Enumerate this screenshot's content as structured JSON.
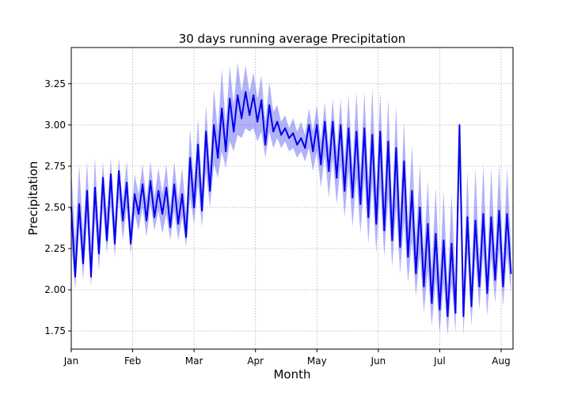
{
  "chart_data": {
    "type": "line",
    "title": "30 days running average Precipitation",
    "xlabel": "Month",
    "ylabel": "Precipitation",
    "xlim": [
      0,
      223
    ],
    "ylim": [
      1.64,
      3.47
    ],
    "grid": true,
    "grid_style": "dotted",
    "x_ticks": [
      {
        "label": "Jan",
        "day": 0
      },
      {
        "label": "Feb",
        "day": 31
      },
      {
        "label": "Mar",
        "day": 62
      },
      {
        "label": "Apr",
        "day": 93
      },
      {
        "label": "May",
        "day": 124
      },
      {
        "label": "Jun",
        "day": 155
      },
      {
        "label": "Jul",
        "day": 186
      },
      {
        "label": "Aug",
        "day": 217
      }
    ],
    "y_ticks": [
      {
        "label": "1.75",
        "value": 1.75
      },
      {
        "label": "2.00",
        "value": 2.0
      },
      {
        "label": "2.25",
        "value": 2.25
      },
      {
        "label": "2.50",
        "value": 2.5
      },
      {
        "label": "2.75",
        "value": 2.75
      },
      {
        "label": "3.00",
        "value": 3.0
      },
      {
        "label": "3.25",
        "value": 3.25
      }
    ],
    "colors": {
      "line": "#0000ee",
      "band": "#0000ee"
    },
    "band_opacity": 0.3,
    "series": [
      {
        "x": [
          0,
          2,
          4,
          6,
          8,
          10,
          12,
          14,
          16,
          18,
          20,
          22,
          24,
          26,
          28,
          30,
          32,
          34,
          36,
          38,
          40,
          42,
          44,
          46,
          48,
          50,
          52,
          54,
          56,
          58,
          60,
          62,
          64,
          66,
          68,
          70,
          72,
          74,
          76,
          78,
          80,
          82,
          84,
          86,
          88,
          90,
          92,
          94,
          96,
          98,
          100,
          102,
          104,
          106,
          108,
          110,
          112,
          114,
          116,
          118,
          120,
          122,
          124,
          126,
          128,
          130,
          132,
          134,
          136,
          138,
          140,
          142,
          144,
          146,
          148,
          150,
          152,
          154,
          156,
          158,
          160,
          162,
          164,
          166,
          168,
          170,
          172,
          174,
          176,
          178,
          180,
          182,
          184,
          186,
          188,
          190,
          192,
          194,
          196,
          198,
          200,
          202,
          204,
          206,
          208,
          210,
          212,
          214,
          216,
          218,
          220,
          222
        ],
        "y": [
          2.5,
          2.08,
          2.52,
          2.16,
          2.6,
          2.08,
          2.62,
          2.22,
          2.68,
          2.3,
          2.7,
          2.28,
          2.72,
          2.42,
          2.65,
          2.28,
          2.58,
          2.46,
          2.64,
          2.42,
          2.66,
          2.44,
          2.6,
          2.46,
          2.62,
          2.38,
          2.64,
          2.4,
          2.58,
          2.32,
          2.8,
          2.5,
          2.88,
          2.48,
          2.96,
          2.6,
          3.0,
          2.8,
          3.1,
          2.84,
          3.16,
          2.96,
          3.18,
          3.04,
          3.2,
          3.06,
          3.18,
          3.02,
          3.15,
          2.88,
          3.12,
          2.96,
          3.02,
          2.94,
          2.98,
          2.92,
          2.95,
          2.88,
          2.92,
          2.86,
          3.0,
          2.84,
          3.0,
          2.76,
          3.02,
          2.72,
          3.02,
          2.68,
          3.0,
          2.6,
          2.98,
          2.56,
          2.96,
          2.52,
          2.98,
          2.44,
          2.94,
          2.4,
          2.96,
          2.36,
          2.9,
          2.3,
          2.86,
          2.26,
          2.78,
          2.2,
          2.6,
          2.1,
          2.5,
          2.02,
          2.4,
          1.92,
          2.34,
          1.88,
          2.3,
          1.84,
          2.28,
          1.86,
          3.0,
          1.84,
          2.44,
          1.9,
          2.42,
          2.02,
          2.46,
          1.98,
          2.44,
          2.06,
          2.48,
          2.02,
          2.46,
          2.1
        ],
        "y_lower": [
          2.3,
          2.0,
          2.38,
          2.06,
          2.42,
          2.02,
          2.44,
          2.12,
          2.5,
          2.22,
          2.52,
          2.2,
          2.56,
          2.3,
          2.5,
          2.22,
          2.46,
          2.36,
          2.5,
          2.32,
          2.52,
          2.36,
          2.48,
          2.34,
          2.46,
          2.3,
          2.48,
          2.3,
          2.44,
          2.26,
          2.56,
          2.4,
          2.64,
          2.38,
          2.72,
          2.5,
          2.76,
          2.68,
          2.84,
          2.74,
          2.9,
          2.84,
          2.94,
          2.92,
          2.98,
          2.96,
          2.98,
          2.9,
          2.96,
          2.8,
          2.96,
          2.86,
          2.92,
          2.86,
          2.9,
          2.84,
          2.86,
          2.8,
          2.84,
          2.78,
          2.86,
          2.72,
          2.84,
          2.62,
          2.82,
          2.56,
          2.8,
          2.52,
          2.76,
          2.44,
          2.72,
          2.38,
          2.68,
          2.34,
          2.68,
          2.28,
          2.64,
          2.22,
          2.62,
          2.2,
          2.56,
          2.14,
          2.5,
          2.1,
          2.42,
          2.04,
          2.3,
          1.96,
          2.22,
          1.86,
          2.12,
          1.78,
          2.06,
          1.74,
          2.04,
          1.72,
          2.04,
          1.74,
          2.7,
          1.72,
          2.22,
          1.78,
          2.2,
          1.88,
          2.22,
          1.84,
          2.2,
          1.92,
          2.24,
          1.9,
          2.22,
          1.98
        ],
        "y_upper": [
          2.74,
          2.3,
          2.76,
          2.34,
          2.78,
          2.28,
          2.8,
          2.36,
          2.78,
          2.46,
          2.8,
          2.42,
          2.8,
          2.54,
          2.78,
          2.4,
          2.7,
          2.58,
          2.76,
          2.54,
          2.78,
          2.56,
          2.74,
          2.58,
          2.76,
          2.5,
          2.78,
          2.54,
          2.74,
          2.46,
          2.98,
          2.64,
          3.04,
          2.62,
          3.12,
          2.74,
          3.22,
          2.96,
          3.34,
          3.0,
          3.36,
          3.12,
          3.38,
          3.2,
          3.36,
          3.2,
          3.32,
          3.16,
          3.3,
          3.02,
          3.26,
          3.08,
          3.12,
          3.02,
          3.06,
          2.98,
          3.04,
          2.96,
          3.02,
          2.94,
          3.1,
          2.96,
          3.12,
          2.9,
          3.14,
          2.86,
          3.16,
          2.84,
          3.16,
          2.78,
          3.18,
          2.74,
          3.2,
          2.72,
          3.2,
          2.66,
          3.22,
          2.6,
          3.2,
          2.56,
          3.16,
          2.5,
          3.12,
          2.46,
          3.02,
          2.4,
          2.88,
          2.3,
          2.76,
          2.22,
          2.66,
          2.12,
          2.62,
          2.06,
          2.6,
          2.02,
          2.58,
          2.04,
          3.0,
          2.0,
          2.72,
          2.06,
          2.74,
          2.18,
          2.76,
          2.14,
          2.74,
          2.22,
          2.76,
          2.18,
          2.74,
          2.26
        ]
      }
    ]
  }
}
